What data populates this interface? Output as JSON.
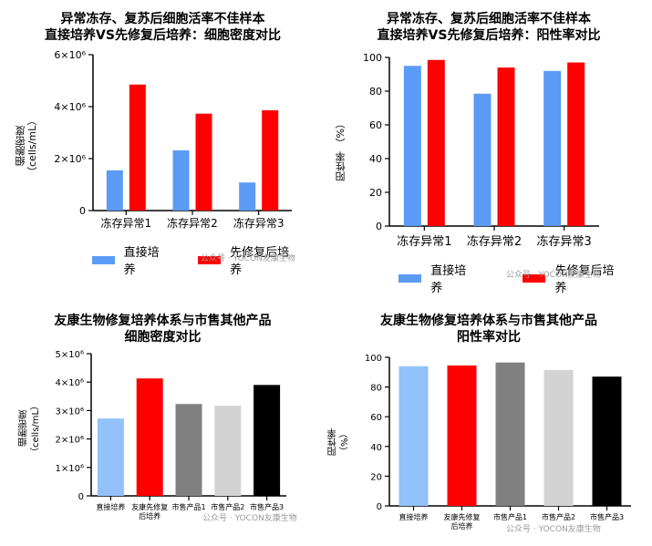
{
  "watermark": "公众号 · YOCON友康生物",
  "colors": {
    "blue": "#5B9BF5",
    "red": "#FF0000",
    "lightblue": "#93C2FA",
    "gray": "#808080",
    "lightgray": "#D3D3D3",
    "black": "#000000"
  },
  "chart_data": [
    {
      "id": "top-left",
      "type": "bar",
      "title_line1": "异常冻存、复苏后细胞活率不佳样本",
      "title_line2": "直接培养VS先修复后培养：细胞密度对比",
      "ylabel_line1": "细胞密度",
      "ylabel_line2": "（cells/mL）",
      "categories": [
        "冻存异常1",
        "冻存异常2",
        "冻存异常3"
      ],
      "yticks": [
        "0",
        "2×10⁶",
        "4×10⁶",
        "6×10⁶"
      ],
      "ylim": [
        0,
        6000000
      ],
      "series": [
        {
          "name": "直接培养",
          "color": "#5B9BF5",
          "values": [
            1550000,
            2320000,
            1080000
          ]
        },
        {
          "name": "先修复后培养",
          "color": "#FF0000",
          "values": [
            4850000,
            3730000,
            3860000
          ]
        }
      ]
    },
    {
      "id": "top-right",
      "type": "bar",
      "title_line1": "异常冻存、复苏后细胞活率不佳样本",
      "title_line2": "直接培养VS先修复后培养：阳性率对比",
      "ylabel_line1": "阳性率",
      "ylabel_line2": "（%）",
      "categories": [
        "冻存异常1",
        "冻存异常2",
        "冻存异常3"
      ],
      "yticks": [
        "0",
        "20",
        "40",
        "60",
        "80",
        "100"
      ],
      "ylim": [
        0,
        100
      ],
      "series": [
        {
          "name": "直接培养",
          "color": "#5B9BF5",
          "values": [
            95,
            78.5,
            92
          ]
        },
        {
          "name": "先修复后培养",
          "color": "#FF0000",
          "values": [
            98.5,
            94,
            97
          ]
        }
      ]
    },
    {
      "id": "bottom-left",
      "type": "bar",
      "title_line1": "友康生物修复培养体系与市售其他产品",
      "title_line2": "细胞密度对比",
      "ylabel_line1": "细胞密度",
      "ylabel_line2": "（cells/mL）",
      "categories": [
        "直接培养",
        "友康先修复后培养",
        "市售产品1",
        "市售产品2",
        "市售产品3"
      ],
      "category_lines": [
        [
          "直接培养"
        ],
        [
          "友康先修复",
          "后培养"
        ],
        [
          "市售产品1"
        ],
        [
          "市售产品2"
        ],
        [
          "市售产品3"
        ]
      ],
      "yticks": [
        "0",
        "1×10⁶",
        "2×10⁶",
        "3×10⁶",
        "4×10⁶",
        "5×10⁶"
      ],
      "ylim": [
        0,
        5000000
      ],
      "values": [
        2720000,
        4130000,
        3230000,
        3170000,
        3900000
      ],
      "bar_colors": [
        "#93C2FA",
        "#FF0000",
        "#808080",
        "#D3D3D3",
        "#000000"
      ]
    },
    {
      "id": "bottom-right",
      "type": "bar",
      "title_line1": "友康生物修复培养体系与市售其他产品",
      "title_line2": "阳性率对比",
      "ylabel_line1": "阳性率",
      "ylabel_line2": "（%）",
      "categories": [
        "直接培养",
        "友康先修复后培养",
        "市售产品1",
        "市售产品2",
        "市售产品3"
      ],
      "category_lines": [
        [
          "直接培养"
        ],
        [
          "友康先修复",
          "后培养"
        ],
        [
          "市售产品1"
        ],
        [
          "市售产品2"
        ],
        [
          "市售产品3"
        ]
      ],
      "yticks": [
        "0",
        "20",
        "40",
        "60",
        "80",
        "100"
      ],
      "ylim": [
        0,
        100
      ],
      "values": [
        94,
        94.5,
        96.5,
        91.5,
        87
      ],
      "bar_colors": [
        "#93C2FA",
        "#FF0000",
        "#808080",
        "#D3D3D3",
        "#000000"
      ]
    }
  ]
}
